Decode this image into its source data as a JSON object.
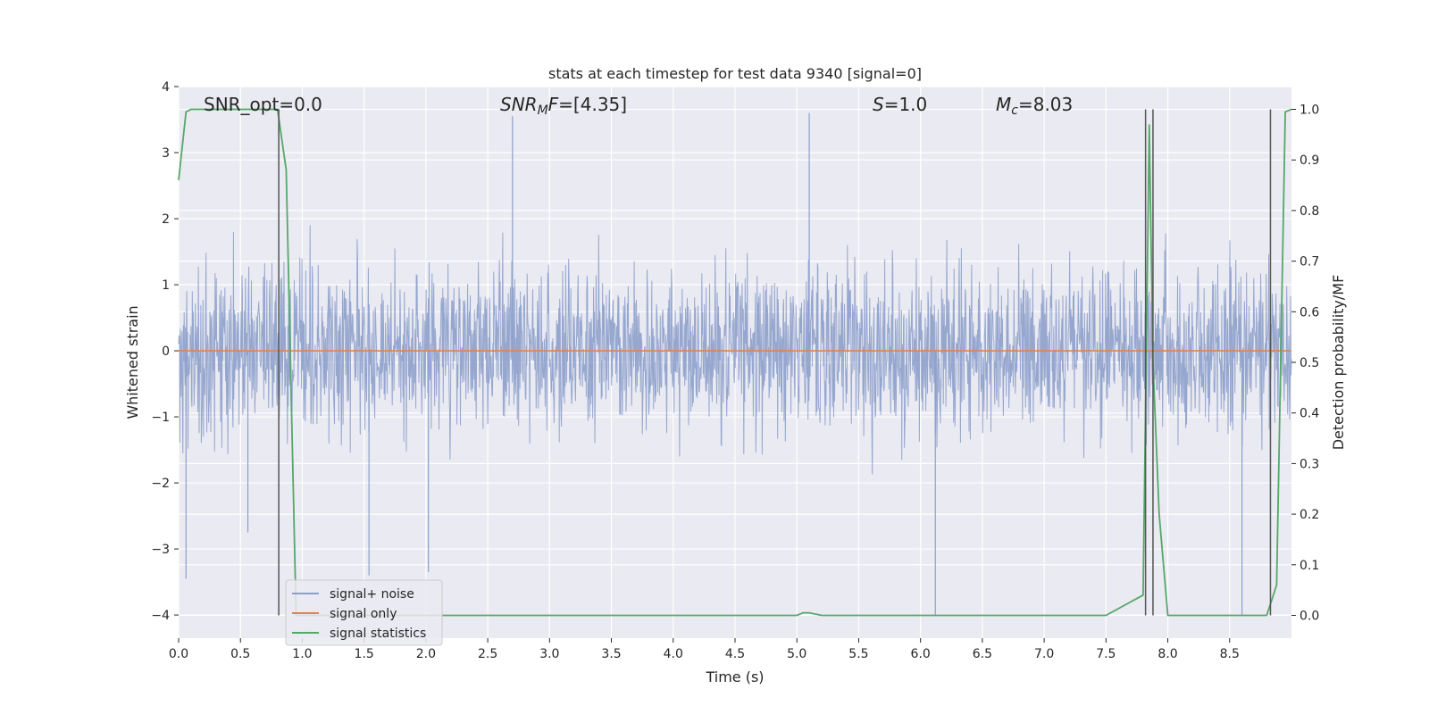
{
  "chart_data": {
    "type": "line",
    "title": "stats at each timestep for test data 9340 [signal=0]",
    "xlabel": "Time (s)",
    "ylabel": "Whitened strain",
    "y2label": "Detection probability/MF",
    "xlim": [
      0.0,
      9.0
    ],
    "ylim": [
      -4.35,
      4.0
    ],
    "y2lim": [
      -0.045,
      1.045
    ],
    "grid": true,
    "xticks": [
      0.0,
      0.5,
      1.0,
      1.5,
      2.0,
      2.5,
      3.0,
      3.5,
      4.0,
      4.5,
      5.0,
      5.5,
      6.0,
      6.5,
      7.0,
      7.5,
      8.0,
      8.5
    ],
    "xtick_labels": [
      "0.0",
      "0.5",
      "1.0",
      "1.5",
      "2.0",
      "2.5",
      "3.0",
      "3.5",
      "4.0",
      "4.5",
      "5.0",
      "5.5",
      "6.0",
      "6.5",
      "7.0",
      "7.5",
      "8.0",
      "8.5"
    ],
    "yticks": [
      -4,
      -3,
      -2,
      -1,
      0,
      1,
      2,
      3,
      4
    ],
    "ytick_labels": [
      "−4",
      "−3",
      "−2",
      "−1",
      "0",
      "1",
      "2",
      "3",
      "4"
    ],
    "y2ticks": [
      0.0,
      0.1,
      0.2,
      0.3,
      0.4,
      0.5,
      0.6,
      0.7,
      0.8,
      0.9,
      1.0
    ],
    "y2tick_labels": [
      "0.0",
      "0.1",
      "0.2",
      "0.3",
      "0.4",
      "0.5",
      "0.6",
      "0.7",
      "0.8",
      "0.9",
      "1.0"
    ],
    "annotations": [
      {
        "text": "SNR_opt=0.0",
        "x": 0.2,
        "y": 3.65,
        "italic": false
      },
      {
        "text": "SNRMF=[4.35]",
        "x": 2.6,
        "y": 3.65,
        "italic": true
      },
      {
        "text": "S=1.0",
        "x": 5.6,
        "y": 3.65,
        "italic": true
      },
      {
        "text": "Mc=8.03",
        "x": 6.6,
        "y": 3.65,
        "italic": true
      }
    ],
    "legend": {
      "placement": "lower-left",
      "entries": [
        "signal+ noise",
        "signal only",
        "signal statistics"
      ]
    },
    "series": [
      {
        "name": "signal+ noise",
        "axis": "left",
        "color": "#8da0cb",
        "note_values": "white-noise strain, approx range -4 to 3.6",
        "peaks": [
          {
            "x": 0.06,
            "y": -3.45
          },
          {
            "x": 0.56,
            "y": -2.75
          },
          {
            "x": 1.54,
            "y": -3.4
          },
          {
            "x": 2.02,
            "y": -3.35
          },
          {
            "x": 2.7,
            "y": 3.55
          },
          {
            "x": 5.1,
            "y": 3.6
          },
          {
            "x": 6.12,
            "y": -4.0
          },
          {
            "x": 8.6,
            "y": -4.0
          }
        ]
      },
      {
        "name": "signal only",
        "axis": "left",
        "color": "#dd8452",
        "x": [
          0.0,
          9.0
        ],
        "y": [
          0.0,
          0.0
        ]
      },
      {
        "name": "signal statistics",
        "axis": "right",
        "color": "#55a868",
        "x": [
          0.0,
          0.06,
          0.1,
          0.15,
          0.2,
          0.3,
          0.4,
          0.5,
          0.6,
          0.7,
          0.8,
          0.87,
          0.95,
          1.0,
          1.5,
          2.0,
          2.5,
          3.0,
          3.5,
          4.0,
          4.5,
          5.0,
          5.05,
          5.1,
          5.2,
          5.3,
          6.0,
          6.5,
          7.0,
          7.5,
          7.8,
          7.85,
          7.88,
          7.93,
          8.0,
          8.5,
          8.75,
          8.8,
          8.88,
          8.95,
          9.0
        ],
        "y": [
          0.86,
          0.995,
          1.0,
          1.0,
          1.0,
          1.0,
          1.0,
          1.0,
          1.0,
          1.0,
          1.0,
          0.88,
          0.0,
          0.0,
          0.0,
          0.0,
          0.0,
          0.0,
          0.0,
          0.0,
          0.0,
          0.0,
          0.005,
          0.005,
          0.0,
          0.0,
          0.0,
          0.0,
          0.0,
          0.0,
          0.04,
          0.97,
          0.5,
          0.2,
          0.0,
          0.0,
          0.0,
          0.0,
          0.06,
          0.995,
          1.0
        ]
      }
    ],
    "vertical_lines": [
      {
        "x": 0.81,
        "color": "#555555"
      },
      {
        "x": 7.82,
        "color": "#555555"
      },
      {
        "x": 7.88,
        "color": "#555555"
      },
      {
        "x": 8.83,
        "color": "#555555"
      }
    ]
  }
}
